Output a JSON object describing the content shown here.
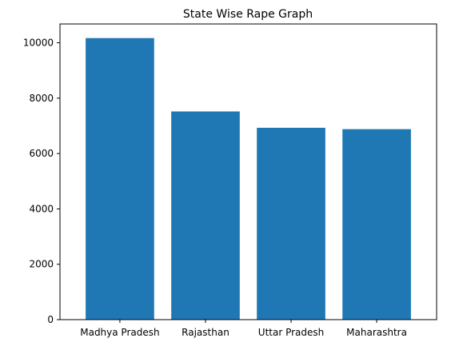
{
  "chart_data": {
    "type": "bar",
    "title": "State Wise Rape Graph",
    "xlabel": "",
    "ylabel": "",
    "categories": [
      "Madhya Pradesh",
      "Rajasthan",
      "Uttar Pradesh",
      "Maharashtra"
    ],
    "values": [
      10170,
      7520,
      6930,
      6880
    ],
    "ylim": [
      0,
      10680
    ],
    "yticks": [
      0,
      2000,
      4000,
      6000,
      8000,
      10000
    ],
    "ytick_labels": [
      "0",
      "2000",
      "4000",
      "6000",
      "8000",
      "10000"
    ],
    "grid": false,
    "bar_color": "#1f77b4"
  }
}
